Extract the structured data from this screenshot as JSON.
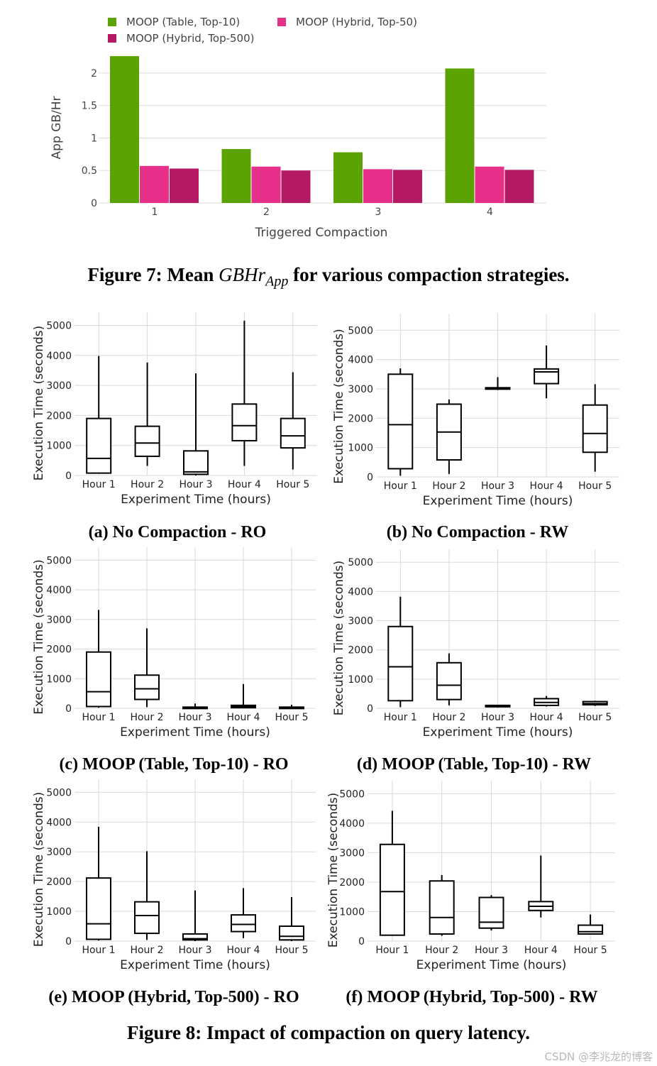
{
  "figure7": {
    "caption_prefix": "Figure 7: Mean ",
    "caption_math": "GBHr",
    "caption_sub": "App",
    "caption_suffix": " for various compaction strategies."
  },
  "figure8": {
    "caption": "Figure 8: Impact of compaction on query latency."
  },
  "watermark": "CSDN @李兆龙的博客",
  "chart_data": [
    {
      "id": "fig7",
      "type": "bar",
      "title": "",
      "xlabel": "Triggered Compaction",
      "ylabel": "App GB/Hr",
      "categories": [
        "1",
        "2",
        "3",
        "4"
      ],
      "ylim": [
        0,
        2.25
      ],
      "yticks": [
        0,
        0.5,
        1,
        1.5,
        2
      ],
      "ytick_labels": [
        "0",
        "0.5",
        "1",
        "1.5",
        "2"
      ],
      "grid": true,
      "legend_position": "top-left",
      "series": [
        {
          "name": "MOOP (Table, Top-10)",
          "color": "#5ba300",
          "values": [
            2.26,
            0.83,
            0.78,
            2.07
          ]
        },
        {
          "name": "MOOP (Hybrid, Top-50)",
          "color": "#e6308a",
          "values": [
            0.57,
            0.56,
            0.52,
            0.56
          ]
        },
        {
          "name": "MOOP (Hybrid, Top-500)",
          "color": "#b51963",
          "values": [
            0.53,
            0.5,
            0.51,
            0.51
          ]
        }
      ]
    },
    {
      "id": "a",
      "type": "box",
      "caption_label": "(a)",
      "caption_text": "No Compaction - RO",
      "xlabel": "Experiment Time (hours)",
      "ylabel": "Execution Time (seconds)",
      "categories": [
        "Hour 1",
        "Hour 2",
        "Hour 3",
        "Hour 4",
        "Hour 5"
      ],
      "ylim": [
        0,
        5200
      ],
      "yticks": [
        0,
        1000,
        2000,
        3000,
        4000,
        5000
      ],
      "boxes": [
        {
          "min": 60,
          "q1": 80,
          "median": 570,
          "q3": 1900,
          "max": 3980
        },
        {
          "min": 320,
          "q1": 640,
          "median": 1080,
          "q3": 1640,
          "max": 3760
        },
        {
          "min": 0,
          "q1": 40,
          "median": 120,
          "q3": 820,
          "max": 3400
        },
        {
          "min": 320,
          "q1": 1160,
          "median": 1660,
          "q3": 2380,
          "max": 5160
        },
        {
          "min": 200,
          "q1": 920,
          "median": 1320,
          "q3": 1900,
          "max": 3440
        }
      ]
    },
    {
      "id": "b",
      "type": "box",
      "caption_label": "(b)",
      "caption_text": "No Compaction - RW",
      "xlabel": "Experiment Time (hours)",
      "ylabel": "Execution Time (seconds)",
      "categories": [
        "Hour 1",
        "Hour 2",
        "Hour 3",
        "Hour 4",
        "Hour 5"
      ],
      "ylim": [
        0,
        5200
      ],
      "yticks": [
        0,
        1000,
        2000,
        3000,
        4000,
        5000
      ],
      "boxes": [
        {
          "min": 40,
          "q1": 280,
          "median": 1780,
          "q3": 3500,
          "max": 3700
        },
        {
          "min": 100,
          "q1": 580,
          "median": 1530,
          "q3": 2480,
          "max": 2640
        },
        {
          "min": 2960,
          "q1": 3000,
          "median": 3020,
          "q3": 3040,
          "max": 3400
        },
        {
          "min": 2680,
          "q1": 3180,
          "median": 3580,
          "q3": 3680,
          "max": 4480
        },
        {
          "min": 180,
          "q1": 840,
          "median": 1480,
          "q3": 2450,
          "max": 3160
        }
      ]
    },
    {
      "id": "c",
      "type": "box",
      "caption_label": "(c)",
      "caption_text": "MOOP (Table, Top-10) - RO",
      "xlabel": "Experiment Time (hours)",
      "ylabel": "Execution Time (seconds)",
      "categories": [
        "Hour 1",
        "Hour 2",
        "Hour 3",
        "Hour 4",
        "Hour 5"
      ],
      "ylim": [
        0,
        5200
      ],
      "yticks": [
        0,
        1000,
        2000,
        3000,
        4000,
        5000
      ],
      "boxes": [
        {
          "min": 20,
          "q1": 60,
          "median": 560,
          "q3": 1900,
          "max": 3320
        },
        {
          "min": 40,
          "q1": 300,
          "median": 660,
          "q3": 1120,
          "max": 2700
        },
        {
          "min": 0,
          "q1": 10,
          "median": 20,
          "q3": 40,
          "max": 160
        },
        {
          "min": 0,
          "q1": 20,
          "median": 60,
          "q3": 100,
          "max": 820
        },
        {
          "min": 0,
          "q1": 10,
          "median": 20,
          "q3": 40,
          "max": 120
        }
      ]
    },
    {
      "id": "d",
      "type": "box",
      "caption_label": "(d)",
      "caption_text": "MOOP (Table, Top-10) - RW",
      "xlabel": "Experiment Time (hours)",
      "ylabel": "Execution Time (seconds)",
      "categories": [
        "Hour 1",
        "Hour 2",
        "Hour 3",
        "Hour 4",
        "Hour 5"
      ],
      "ylim": [
        0,
        5200
      ],
      "yticks": [
        0,
        1000,
        2000,
        3000,
        4000,
        5000
      ],
      "boxes": [
        {
          "min": 40,
          "q1": 260,
          "median": 1420,
          "q3": 2800,
          "max": 3820
        },
        {
          "min": 100,
          "q1": 300,
          "median": 790,
          "q3": 1560,
          "max": 1880
        },
        {
          "min": 30,
          "q1": 60,
          "median": 80,
          "q3": 100,
          "max": 120
        },
        {
          "min": 60,
          "q1": 100,
          "median": 200,
          "q3": 330,
          "max": 420
        },
        {
          "min": 80,
          "q1": 120,
          "median": 160,
          "q3": 230,
          "max": 260
        }
      ]
    },
    {
      "id": "e",
      "type": "box",
      "caption_label": "(e)",
      "caption_text": "MOOP (Hybrid, Top-500) - RO",
      "xlabel": "Experiment Time (hours)",
      "ylabel": "Execution Time (seconds)",
      "categories": [
        "Hour 1",
        "Hour 2",
        "Hour 3",
        "Hour 4",
        "Hour 5"
      ],
      "ylim": [
        0,
        5200
      ],
      "yticks": [
        0,
        1000,
        2000,
        3000,
        4000,
        5000
      ],
      "boxes": [
        {
          "min": 20,
          "q1": 60,
          "median": 580,
          "q3": 2120,
          "max": 3840
        },
        {
          "min": 40,
          "q1": 260,
          "median": 860,
          "q3": 1320,
          "max": 3020
        },
        {
          "min": 0,
          "q1": 40,
          "median": 80,
          "q3": 240,
          "max": 1700
        },
        {
          "min": 100,
          "q1": 320,
          "median": 560,
          "q3": 880,
          "max": 1780
        },
        {
          "min": 0,
          "q1": 40,
          "median": 160,
          "q3": 500,
          "max": 1480
        }
      ]
    },
    {
      "id": "f",
      "type": "box",
      "caption_label": "(f)",
      "caption_text": "MOOP (Hybrid, Top-500) - RW",
      "xlabel": "Experiment Time (hours)",
      "ylabel": "Execution Time (seconds)",
      "categories": [
        "Hour 1",
        "Hour 2",
        "Hour 3",
        "Hour 4",
        "Hour 5"
      ],
      "ylim": [
        0,
        5200
      ],
      "yticks": [
        0,
        1000,
        2000,
        3000,
        4000,
        5000
      ],
      "boxes": [
        {
          "min": 180,
          "q1": 200,
          "median": 1680,
          "q3": 3280,
          "max": 4420
        },
        {
          "min": 180,
          "q1": 240,
          "median": 800,
          "q3": 2040,
          "max": 2240
        },
        {
          "min": 360,
          "q1": 440,
          "median": 640,
          "q3": 1480,
          "max": 1560
        },
        {
          "min": 800,
          "q1": 1040,
          "median": 1180,
          "q3": 1340,
          "max": 2900
        },
        {
          "min": 220,
          "q1": 240,
          "median": 320,
          "q3": 540,
          "max": 900
        }
      ]
    }
  ]
}
